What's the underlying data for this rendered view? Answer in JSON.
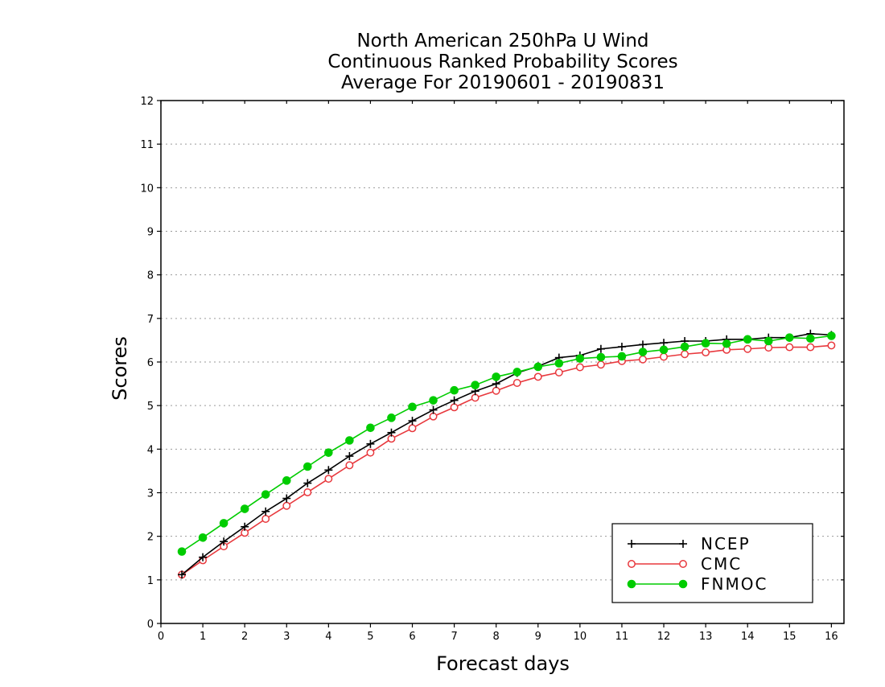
{
  "chart_data": {
    "type": "line",
    "title": [
      "North American 250hPa U Wind",
      "Continuous Ranked Probability Scores",
      "Average For 20190601 - 20190831"
    ],
    "xlabel": "Forecast days",
    "ylabel": "Scores",
    "xlim": [
      0,
      16.3
    ],
    "ylim": [
      0,
      12
    ],
    "x_ticks": [
      "0",
      "1",
      "2",
      "3",
      "4",
      "5",
      "6",
      "7",
      "8",
      "9",
      "10",
      "11",
      "12",
      "13",
      "14",
      "15",
      "16"
    ],
    "y_ticks": [
      "0",
      "1",
      "2",
      "3",
      "4",
      "5",
      "6",
      "7",
      "8",
      "9",
      "10",
      "11",
      "12"
    ],
    "grid": "horizontal dotted",
    "legend_position": "bottom-right",
    "x": [
      0.5,
      1,
      1.5,
      2,
      2.5,
      3,
      3.5,
      4,
      4.5,
      5,
      5.5,
      6,
      6.5,
      7,
      7.5,
      8,
      8.5,
      9,
      9.5,
      10,
      10.5,
      11,
      11.5,
      12,
      12.5,
      13,
      13.5,
      14,
      14.5,
      15,
      15.5,
      16
    ],
    "series": [
      {
        "name": "NCEP",
        "color": "#000000",
        "marker": "plus",
        "values": [
          1.12,
          1.52,
          1.88,
          2.22,
          2.57,
          2.87,
          3.22,
          3.52,
          3.84,
          4.12,
          4.38,
          4.65,
          4.9,
          5.12,
          5.33,
          5.5,
          5.75,
          5.9,
          6.1,
          6.15,
          6.3,
          6.35,
          6.4,
          6.44,
          6.48,
          6.48,
          6.52,
          6.52,
          6.56,
          6.56,
          6.65,
          6.62
        ]
      },
      {
        "name": "CMC",
        "color": "#e8383d",
        "marker": "open-circle",
        "values": [
          1.12,
          1.45,
          1.77,
          2.08,
          2.4,
          2.7,
          3.01,
          3.32,
          3.63,
          3.92,
          4.24,
          4.48,
          4.75,
          4.96,
          5.18,
          5.34,
          5.52,
          5.66,
          5.76,
          5.88,
          5.94,
          6.02,
          6.06,
          6.12,
          6.18,
          6.22,
          6.28,
          6.3,
          6.33,
          6.34,
          6.34,
          6.38
        ]
      },
      {
        "name": "FNMOC",
        "color": "#00cc00",
        "marker": "filled-circle",
        "values": [
          1.65,
          1.97,
          2.3,
          2.63,
          2.96,
          3.28,
          3.6,
          3.92,
          4.2,
          4.49,
          4.72,
          4.97,
          5.12,
          5.35,
          5.47,
          5.66,
          5.77,
          5.89,
          5.97,
          6.08,
          6.11,
          6.13,
          6.23,
          6.28,
          6.35,
          6.43,
          6.42,
          6.52,
          6.48,
          6.56,
          6.54,
          6.6
        ]
      }
    ]
  }
}
